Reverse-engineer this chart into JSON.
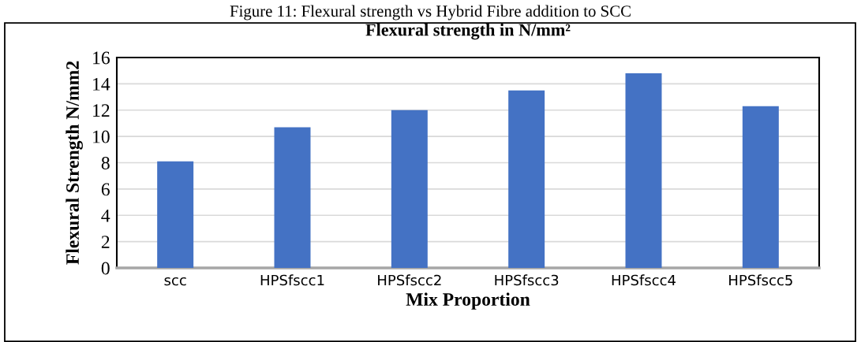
{
  "chart_data": {
    "type": "bar",
    "title": "Flexural strength in N/mm²",
    "xlabel": "Mix Proportion",
    "ylabel": "Flexural Strength N/mm2",
    "annotations": [
      "Figure 11: Flexural strength vs Hybrid Fibre addition to SCC"
    ],
    "categories": [
      "scc",
      "HPSfscc1",
      "HPSfscc2",
      "HPSfscc3",
      "HPSfscc4",
      "HPSfscc5"
    ],
    "values": [
      8.1,
      10.7,
      12.0,
      13.5,
      14.8,
      12.3
    ],
    "color": "#4472c4",
    "ylim": [
      0,
      16
    ],
    "yticks": [
      0,
      2,
      4,
      6,
      8,
      10,
      12,
      14,
      16
    ],
    "grid": "y",
    "legend": false
  }
}
